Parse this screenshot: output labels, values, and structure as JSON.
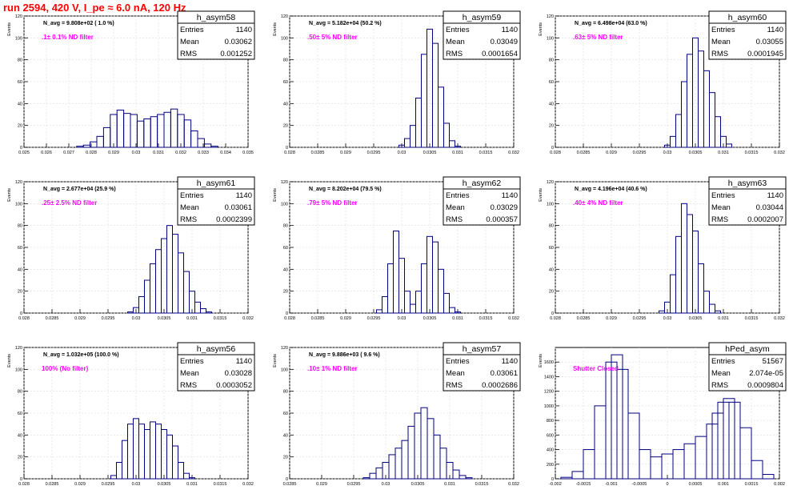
{
  "run_title": "run 2594,   420 V, I_pe ≈ 6.0 nA, 120 Hz",
  "colors": {
    "histogram": "#000080",
    "annotation": "#ff00ff",
    "title": "#ff0000",
    "grid": "#dddddd"
  },
  "chart_data": [
    {
      "type": "bar",
      "name": "h_asym58",
      "navg": "N_avg = 9.808e+02 ( 1.0 %)",
      "filter": ".1± 0.1% ND filter",
      "stats": [
        {
          "label": "Entries",
          "value": "1140"
        },
        {
          "label": "Mean",
          "value": "0.03062"
        },
        {
          "label": "RMS",
          "value": "0.001252"
        }
      ],
      "ylabel": "Events",
      "xlabel": "",
      "xlim": [
        0.025,
        0.035
      ],
      "ylim": [
        0,
        120
      ],
      "xticks": [
        "0.025",
        "0.026",
        "0.027",
        "0.028",
        "0.029",
        "0.03",
        "0.031",
        "0.032",
        "0.033",
        "0.034",
        "0.035"
      ],
      "yticks": [
        "0",
        "20",
        "40",
        "60",
        "80",
        "100",
        "120"
      ],
      "x": [
        0.0275,
        0.0278,
        0.0281,
        0.0284,
        0.0287,
        0.029,
        0.0293,
        0.0296,
        0.0299,
        0.0302,
        0.0305,
        0.0308,
        0.0311,
        0.0314,
        0.0317,
        0.032,
        0.0323,
        0.0326,
        0.0329,
        0.0332,
        0.0335
      ],
      "values": [
        1,
        2,
        5,
        10,
        18,
        30,
        34,
        31,
        30,
        24,
        26,
        28,
        30,
        32,
        35,
        30,
        25,
        15,
        8,
        3,
        1
      ]
    },
    {
      "type": "bar",
      "name": "h_asym59",
      "navg": "N_avg = 5.182e+04 (50.2 %)",
      "filter": ".50± 5% ND filter",
      "stats": [
        {
          "label": "Entries",
          "value": "1140"
        },
        {
          "label": "Mean",
          "value": "0.03049"
        },
        {
          "label": "RMS",
          "value": "0.0001654"
        }
      ],
      "ylabel": "Events",
      "xlabel": "",
      "xlim": [
        0.028,
        0.032
      ],
      "ylim": [
        0,
        120
      ],
      "xticks": [
        "0.028",
        "0.0285",
        "0.029",
        "0.0295",
        "0.03",
        "0.0305",
        "0.031",
        "0.0315",
        "0.032"
      ],
      "yticks": [
        "0",
        "20",
        "40",
        "60",
        "80",
        "100",
        "120"
      ],
      "x": [
        0.03,
        0.0301,
        0.0302,
        0.0303,
        0.0304,
        0.0305,
        0.0306,
        0.0307,
        0.0308,
        0.0309,
        0.031
      ],
      "values": [
        2,
        8,
        20,
        45,
        85,
        108,
        95,
        55,
        22,
        6,
        1
      ]
    },
    {
      "type": "bar",
      "name": "h_asym60",
      "navg": "N_avg = 6.498e+04 (63.0 %)",
      "filter": ".63± 5% ND filter",
      "stats": [
        {
          "label": "Entries",
          "value": "1140"
        },
        {
          "label": "Mean",
          "value": "0.03055"
        },
        {
          "label": "RMS",
          "value": "0.0001945"
        }
      ],
      "ylabel": "Events",
      "xlabel": "",
      "xlim": [
        0.028,
        0.032
      ],
      "ylim": [
        0,
        120
      ],
      "xticks": [
        "0.028",
        "0.0285",
        "0.029",
        "0.0295",
        "0.03",
        "0.0305",
        "0.031",
        "0.0315",
        "0.032"
      ],
      "yticks": [
        "0",
        "20",
        "40",
        "60",
        "80",
        "100",
        "120"
      ],
      "x": [
        0.03,
        0.0301,
        0.0302,
        0.0303,
        0.0304,
        0.0305,
        0.0306,
        0.0307,
        0.0308,
        0.0309,
        0.031,
        0.0311
      ],
      "values": [
        2,
        10,
        30,
        60,
        85,
        100,
        88,
        70,
        50,
        28,
        10,
        3
      ]
    },
    {
      "type": "bar",
      "name": "h_asym61",
      "navg": "N_avg = 2.677e+04 (25.9 %)",
      "filter": ".25± 2.5% ND filter",
      "stats": [
        {
          "label": "Entries",
          "value": "1140"
        },
        {
          "label": "Mean",
          "value": "0.03061"
        },
        {
          "label": "RMS",
          "value": "0.0002399"
        }
      ],
      "ylabel": "Events",
      "xlabel": "",
      "xlim": [
        0.028,
        0.032
      ],
      "ylim": [
        0,
        120
      ],
      "xticks": [
        "0.028",
        "0.0285",
        "0.029",
        "0.0295",
        "0.03",
        "0.0305",
        "0.031",
        "0.0315",
        "0.032"
      ],
      "yticks": [
        "0",
        "20",
        "40",
        "60",
        "80",
        "100",
        "120"
      ],
      "x": [
        0.0299,
        0.03,
        0.0301,
        0.0302,
        0.0303,
        0.0304,
        0.0305,
        0.0306,
        0.0307,
        0.0308,
        0.0309,
        0.031,
        0.0311,
        0.0312,
        0.0313
      ],
      "values": [
        1,
        5,
        15,
        30,
        45,
        58,
        68,
        80,
        72,
        55,
        38,
        20,
        10,
        4,
        1
      ]
    },
    {
      "type": "bar",
      "name": "h_asym62",
      "navg": "N_avg = 8.202e+04 (79.5 %)",
      "filter": ".79± 5% ND filter",
      "stats": [
        {
          "label": "Entries",
          "value": "1140"
        },
        {
          "label": "Mean",
          "value": "0.03029"
        },
        {
          "label": "RMS",
          "value": "0.000357"
        }
      ],
      "ylabel": "Events",
      "xlabel": "",
      "xlim": [
        0.028,
        0.032
      ],
      "ylim": [
        0,
        120
      ],
      "xticks": [
        "0.028",
        "0.0285",
        "0.029",
        "0.0295",
        "0.03",
        "0.0305",
        "0.031",
        "0.0315",
        "0.032"
      ],
      "yticks": [
        "0",
        "20",
        "40",
        "60",
        "80",
        "100",
        "120"
      ],
      "x": [
        0.0296,
        0.0297,
        0.0298,
        0.0299,
        0.03,
        0.0301,
        0.0302,
        0.0303,
        0.0304,
        0.0305,
        0.0306,
        0.0307,
        0.0308,
        0.0309,
        0.031
      ],
      "values": [
        3,
        15,
        45,
        75,
        50,
        20,
        8,
        20,
        45,
        70,
        65,
        40,
        18,
        5,
        1
      ]
    },
    {
      "type": "bar",
      "name": "h_asym63",
      "navg": "N_avg = 4.196e+04 (40.6 %)",
      "filter": ".40± 4% ND filter",
      "stats": [
        {
          "label": "Entries",
          "value": "1140"
        },
        {
          "label": "Mean",
          "value": "0.03044"
        },
        {
          "label": "RMS",
          "value": "0.0002007"
        }
      ],
      "ylabel": "Events",
      "xlabel": "",
      "xlim": [
        0.028,
        0.032
      ],
      "ylim": [
        0,
        120
      ],
      "xticks": [
        "0.028",
        "0.0285",
        "0.029",
        "0.0295",
        "0.03",
        "0.0305",
        "0.031",
        "0.0315",
        "0.032"
      ],
      "yticks": [
        "0",
        "20",
        "40",
        "60",
        "80",
        "100",
        "120"
      ],
      "x": [
        0.0299,
        0.03,
        0.0301,
        0.0302,
        0.0303,
        0.0304,
        0.0305,
        0.0306,
        0.0307,
        0.0308,
        0.0309
      ],
      "values": [
        2,
        10,
        35,
        70,
        100,
        90,
        75,
        45,
        20,
        8,
        2
      ]
    },
    {
      "type": "bar",
      "name": "h_asym56",
      "navg": "N_avg = 1.032e+05 (100.0 %)",
      "filter": "100% (No filter)",
      "stats": [
        {
          "label": "Entries",
          "value": "1140"
        },
        {
          "label": "Mean",
          "value": "0.03028"
        },
        {
          "label": "RMS",
          "value": "0.0003052"
        }
      ],
      "ylabel": "Events",
      "xlabel": "",
      "xlim": [
        0.028,
        0.032
      ],
      "ylim": [
        0,
        120
      ],
      "xticks": [
        "0.028",
        "0.0285",
        "0.029",
        "0.0295",
        "0.03",
        "0.0305",
        "0.031",
        "0.0315",
        "0.032"
      ],
      "yticks": [
        "0",
        "20",
        "40",
        "60",
        "80",
        "100",
        "120"
      ],
      "x": [
        0.0296,
        0.0297,
        0.0298,
        0.0299,
        0.03,
        0.0301,
        0.0302,
        0.0303,
        0.0304,
        0.0305,
        0.0306,
        0.0307,
        0.0308,
        0.0309,
        0.031
      ],
      "values": [
        3,
        15,
        35,
        50,
        55,
        50,
        45,
        52,
        50,
        45,
        40,
        30,
        15,
        5,
        1
      ]
    },
    {
      "type": "bar",
      "name": "h_asym57",
      "navg": "N_avg = 9.886e+03 ( 9.6 %)",
      "filter": ".10± 1% ND filter",
      "stats": [
        {
          "label": "Entries",
          "value": "1140"
        },
        {
          "label": "Mean",
          "value": "0.03061"
        },
        {
          "label": "RMS",
          "value": "0.0002686"
        }
      ],
      "ylabel": "Events",
      "xlabel": "",
      "xlim": [
        0.0285,
        0.032
      ],
      "ylim": [
        0,
        120
      ],
      "xticks": [
        "0.0285",
        "0.029",
        "0.0295",
        "0.03",
        "0.0305",
        "0.031",
        "0.0315",
        "0.032"
      ],
      "yticks": [
        "0",
        "20",
        "40",
        "60",
        "80",
        "100",
        "120"
      ],
      "x": [
        0.0297,
        0.0298,
        0.0299,
        0.03,
        0.0301,
        0.0302,
        0.0303,
        0.0304,
        0.0305,
        0.0306,
        0.0307,
        0.0308,
        0.0309,
        0.031,
        0.0311,
        0.0312,
        0.0313
      ],
      "values": [
        1,
        5,
        10,
        15,
        22,
        28,
        35,
        48,
        60,
        65,
        55,
        40,
        28,
        15,
        8,
        3,
        1
      ]
    },
    {
      "type": "bar",
      "name": "hPed_asym",
      "navg": "",
      "filter": "Shutter Closed",
      "stats": [
        {
          "label": "Entries",
          "value": "51567"
        },
        {
          "label": "Mean",
          "value": "2.074e-05"
        },
        {
          "label": "RMS",
          "value": "0.0009804"
        }
      ],
      "ylabel": "Events",
      "xlabel": "",
      "xlim": [
        -0.002,
        0.002
      ],
      "ylim": [
        0,
        1800
      ],
      "xticks": [
        "-0.002",
        "-0.0015",
        "-0.001",
        "-0.0005",
        "0",
        "0.0005",
        "0.001",
        "0.0015",
        "0.002"
      ],
      "yticks": [
        "0",
        "200",
        "400",
        "600",
        "800",
        "1000",
        "1200",
        "1400",
        "1600"
      ],
      "x": [
        -0.0018,
        -0.0016,
        -0.0014,
        -0.0012,
        -0.001,
        -0.0009,
        -0.0008,
        -0.0006,
        -0.0004,
        -0.0002,
        0,
        0.0002,
        0.0004,
        0.0006,
        0.0008,
        0.0009,
        0.001,
        0.0011,
        0.0012,
        0.0014,
        0.0016,
        0.0018
      ],
      "values": [
        20,
        100,
        400,
        1000,
        1600,
        1700,
        1500,
        900,
        400,
        300,
        340,
        400,
        480,
        580,
        750,
        900,
        1050,
        1100,
        1050,
        700,
        250,
        60
      ]
    }
  ]
}
